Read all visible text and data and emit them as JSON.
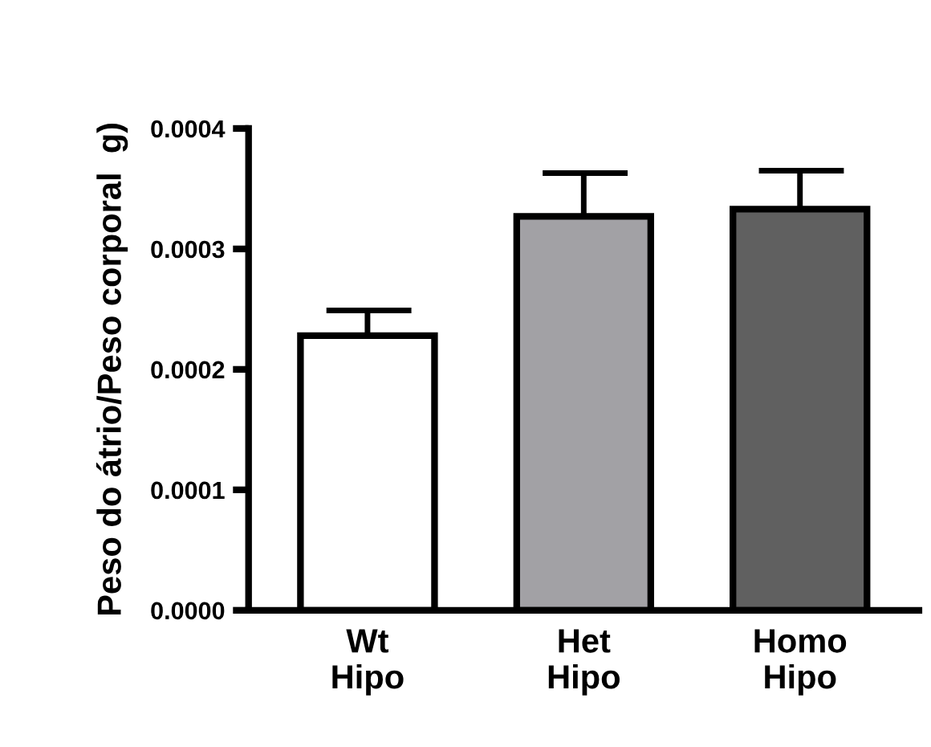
{
  "chart_data": {
    "type": "bar",
    "ylabel": "Peso do átrio/Peso corporal  g)",
    "categories": [
      "Wt\nHipo",
      "Het\nHipo",
      "Homo\nHipo"
    ],
    "values": [
      0.000228,
      0.000327,
      0.000333
    ],
    "errors": [
      [
        0.000228,
        0.000249
      ],
      [
        0.000327,
        0.000363
      ],
      [
        0.000333,
        0.000365
      ]
    ],
    "colors": [
      "#ffffff",
      "#a2a1a5",
      "#606060"
    ],
    "ylim": [
      0,
      0.0004
    ],
    "yticks": [
      {
        "value": 0,
        "label": "0.0000"
      },
      {
        "value": 0.0001,
        "label": "0.0001"
      },
      {
        "value": 0.0002,
        "label": "0.0002"
      },
      {
        "value": 0.0003,
        "label": "0.0003"
      },
      {
        "value": 0.0004,
        "label": "0.0004"
      }
    ],
    "grid": false,
    "legend": false
  }
}
